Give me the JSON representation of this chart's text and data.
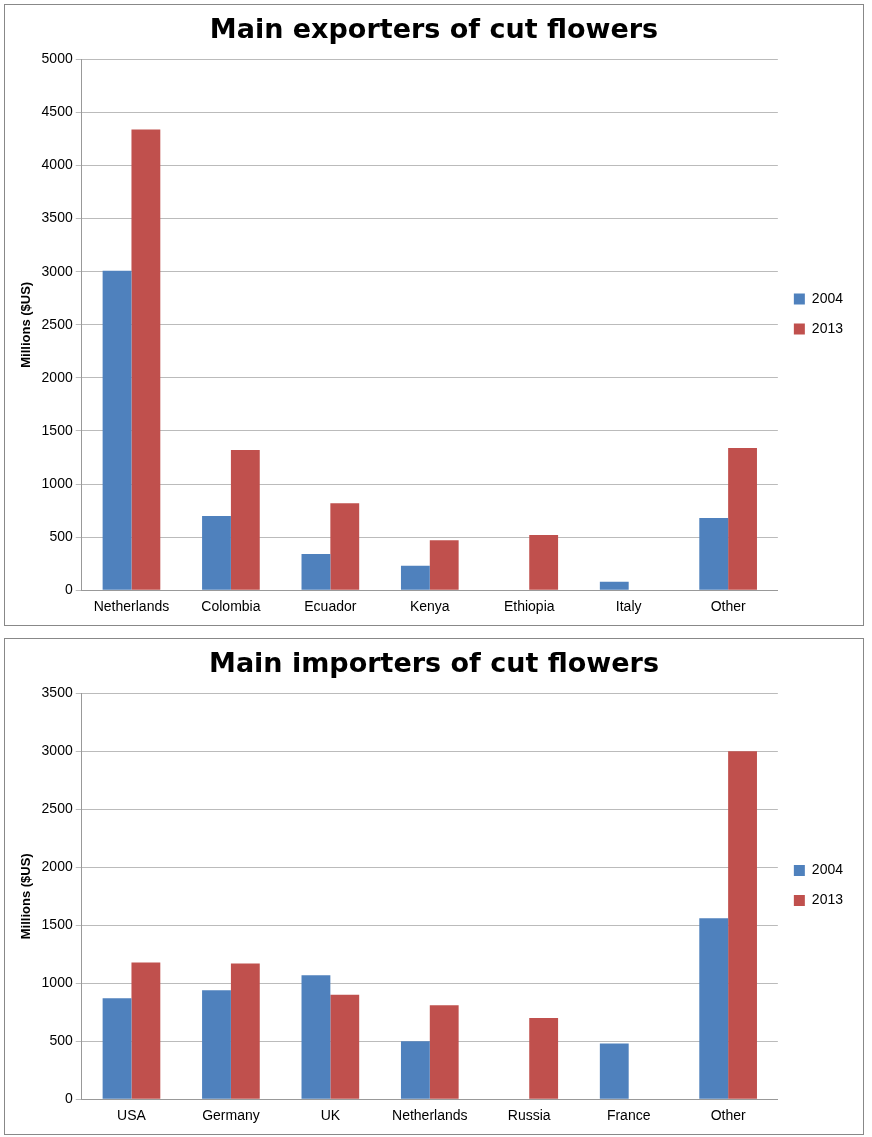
{
  "chart_data": [
    {
      "type": "bar",
      "title": "Main exporters of cut flowers",
      "ylabel": "Millions ($US)",
      "categories": [
        "Netherlands",
        "Colombia",
        "Ecuador",
        "Kenya",
        "Ethiopia",
        "Italy",
        "Other"
      ],
      "series": [
        {
          "name": "2004",
          "color": "#4f81bd",
          "values": [
            3010,
            700,
            340,
            230,
            null,
            80,
            680
          ]
        },
        {
          "name": "2013",
          "color": "#c0504d",
          "values": [
            4340,
            1320,
            820,
            470,
            520,
            null,
            1340
          ]
        }
      ],
      "ylim": [
        0,
        5000
      ],
      "yticks": [
        0,
        500,
        1000,
        1500,
        2000,
        2500,
        3000,
        3500,
        4000,
        4500,
        5000
      ],
      "grid": "y",
      "legend": "right"
    },
    {
      "type": "bar",
      "title": "Main importers of cut flowers",
      "ylabel": "Millions ($US)",
      "categories": [
        "USA",
        "Germany",
        "UK",
        "Netherlands",
        "Russia",
        "France",
        "Other"
      ],
      "series": [
        {
          "name": "2004",
          "color": "#4f81bd",
          "values": [
            870,
            940,
            1070,
            500,
            null,
            480,
            1560
          ]
        },
        {
          "name": "2013",
          "color": "#c0504d",
          "values": [
            1180,
            1170,
            900,
            810,
            700,
            null,
            3000
          ]
        }
      ],
      "ylim": [
        0,
        3500
      ],
      "yticks": [
        0,
        500,
        1000,
        1500,
        2000,
        2500,
        3000,
        3500
      ],
      "grid": "y",
      "legend": "right"
    }
  ]
}
